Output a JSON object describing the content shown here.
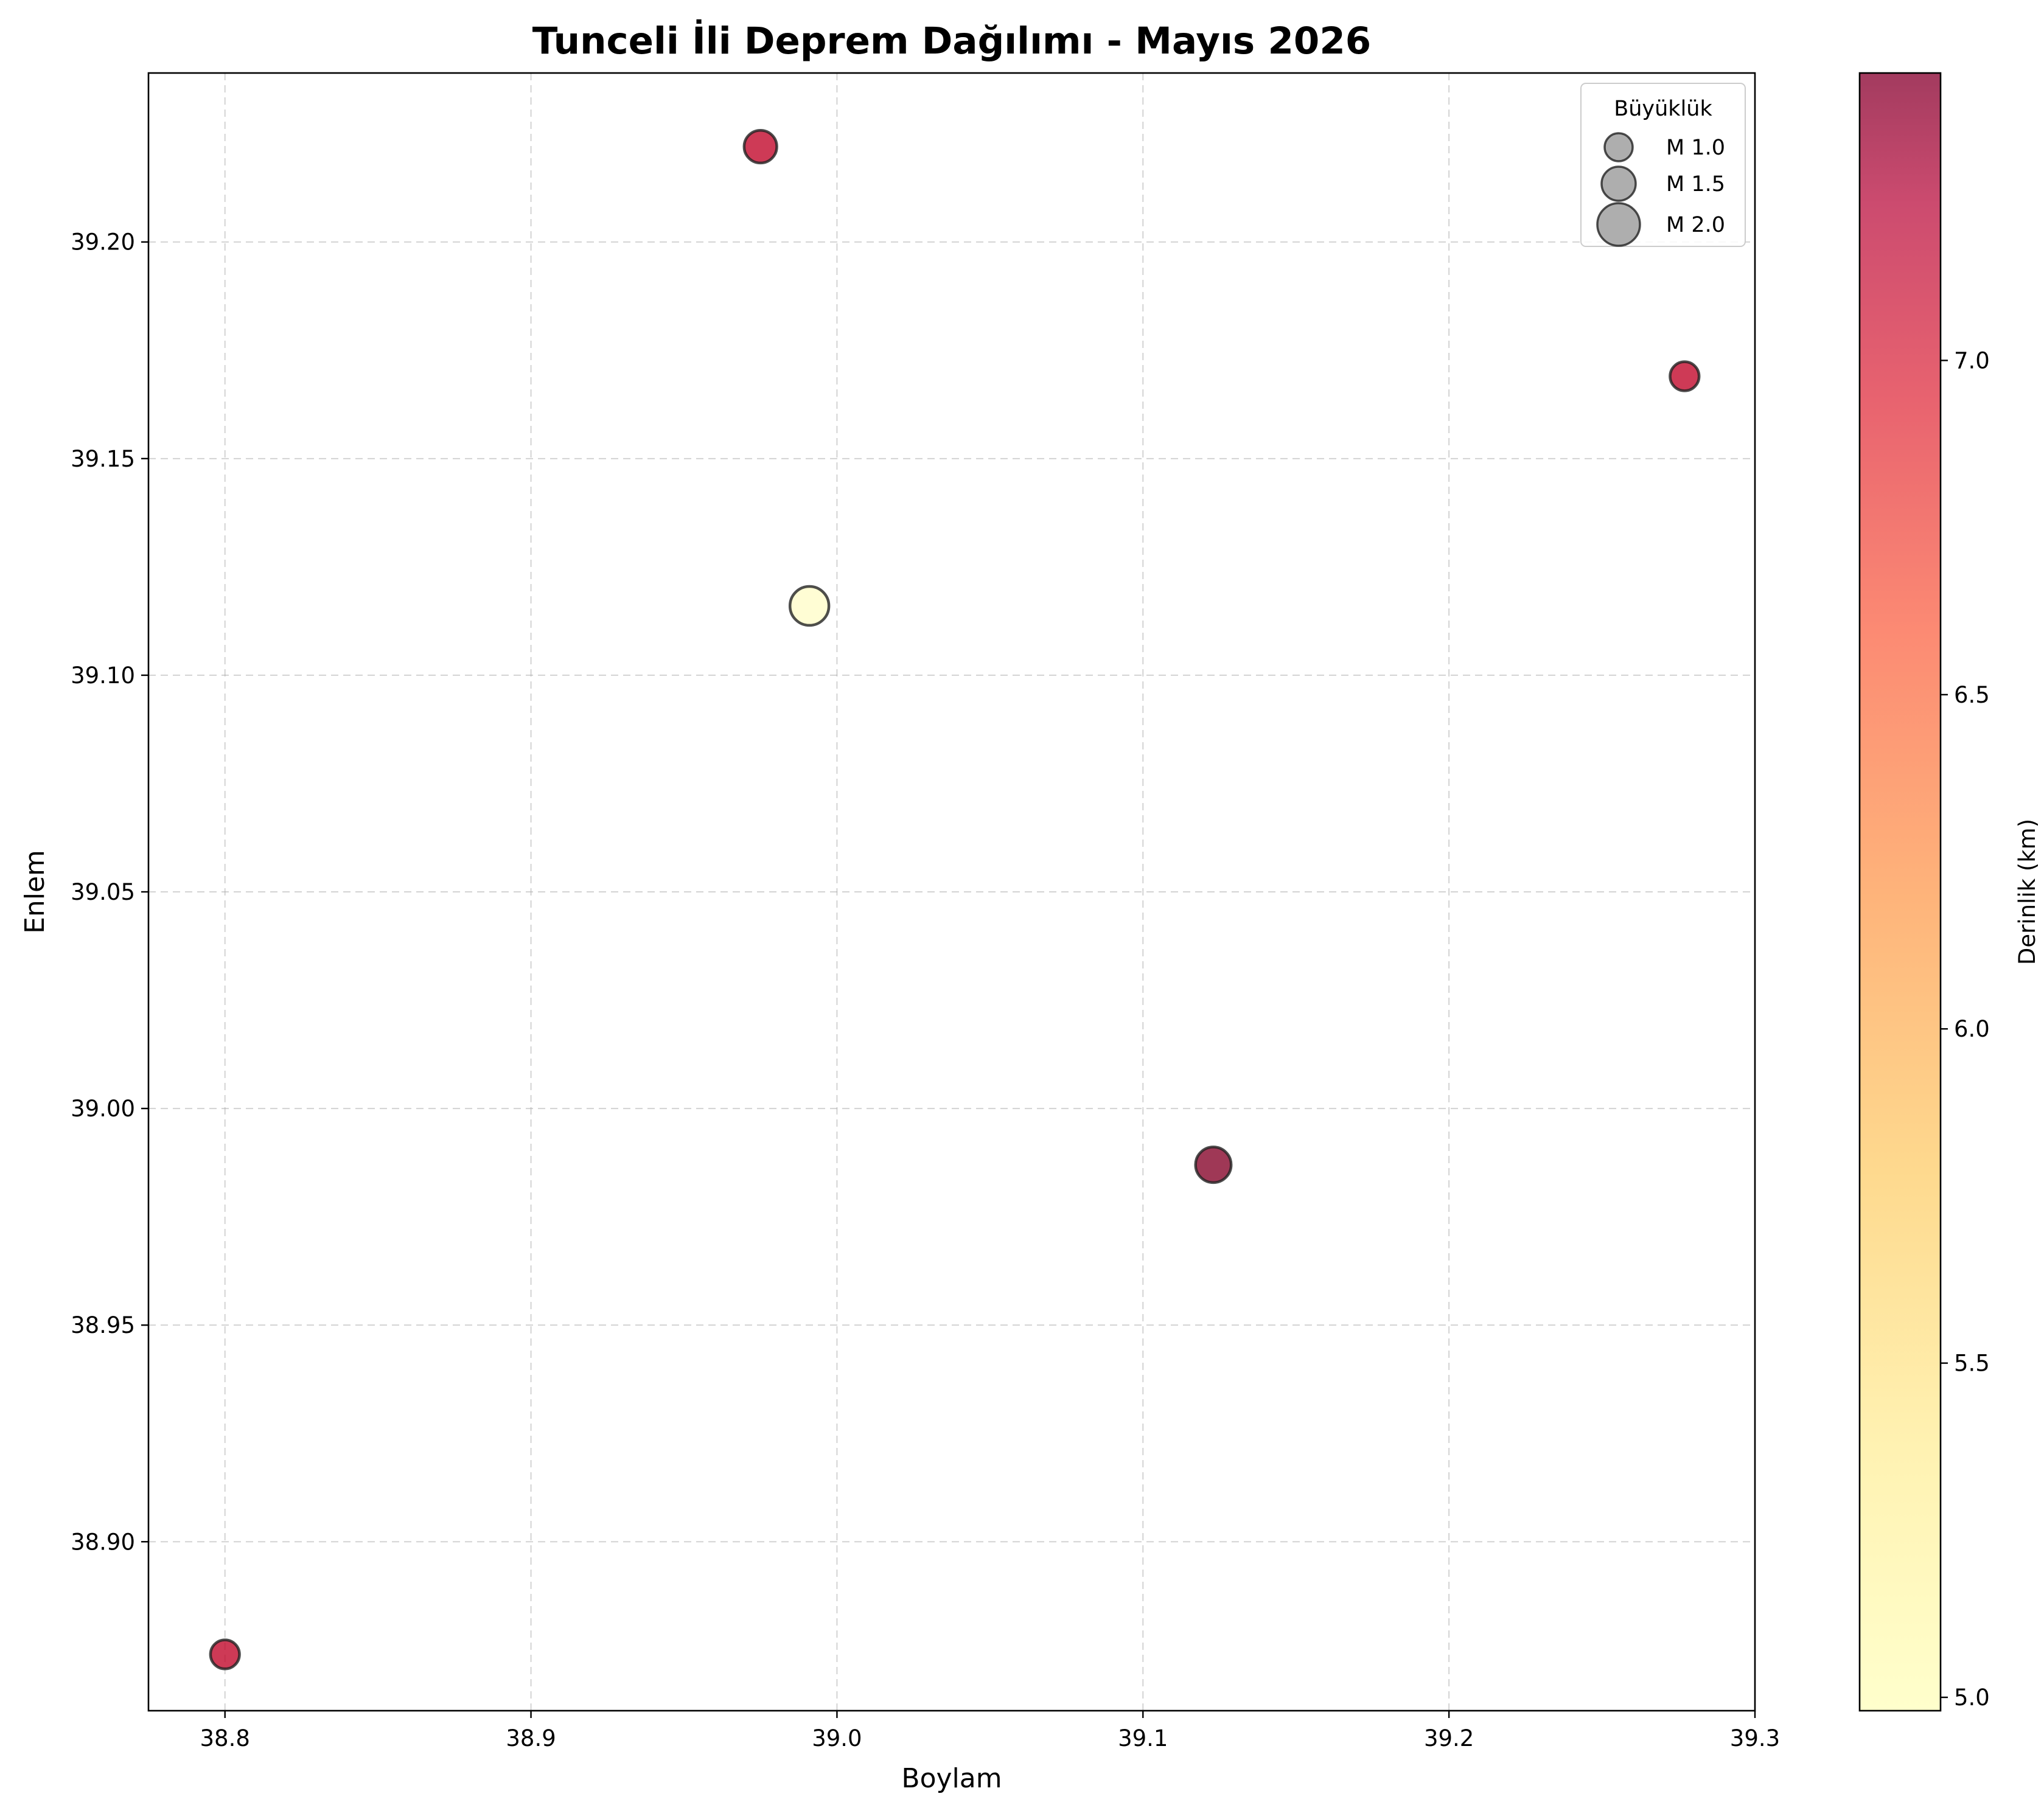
{
  "chart_data": {
    "type": "scatter",
    "title": "Tunceli İli Deprem Dağılımı - Mayıs 2026",
    "xlabel": "Boylam",
    "ylabel": "Enlem",
    "xlim": [
      38.775,
      39.3
    ],
    "ylim": [
      38.861,
      39.239
    ],
    "xticks": [
      38.8,
      38.9,
      39.0,
      39.1,
      39.2,
      39.3
    ],
    "xtick_labels": [
      "38.8",
      "38.9",
      "39.0",
      "39.1",
      "39.2",
      "39.3"
    ],
    "yticks": [
      38.9,
      38.95,
      39.0,
      39.05,
      39.1,
      39.15,
      39.2
    ],
    "ytick_labels": [
      "38.90",
      "38.95",
      "39.00",
      "39.05",
      "39.10",
      "39.15",
      "39.20"
    ],
    "grid": true,
    "points": [
      {
        "lon": 38.975,
        "lat": 39.222,
        "magnitude": 1.4,
        "depth": 7.0
      },
      {
        "lon": 38.991,
        "lat": 39.116,
        "magnitude": 1.8,
        "depth": 5.0
      },
      {
        "lon": 39.277,
        "lat": 39.169,
        "magnitude": 1.1,
        "depth": 7.0
      },
      {
        "lon": 39.123,
        "lat": 38.987,
        "magnitude": 1.6,
        "depth": 7.4
      },
      {
        "lon": 38.8,
        "lat": 38.874,
        "magnitude": 1.1,
        "depth": 7.0
      }
    ],
    "size_legend": {
      "title": "Büyüklük",
      "placement": "top-right",
      "entries": [
        {
          "label": "M 1.0",
          "magnitude": 1.0
        },
        {
          "label": "M 1.5",
          "magnitude": 1.5
        },
        {
          "label": "M 2.0",
          "magnitude": 2.0
        }
      ]
    },
    "colorbar": {
      "label": "Derinlik (km)",
      "range": [
        4.98,
        7.43
      ],
      "ticks": [
        5.0,
        5.5,
        6.0,
        6.5,
        7.0
      ],
      "tick_labels": [
        "5.0",
        "5.5",
        "6.0",
        "6.5",
        "7.0"
      ],
      "colormap": "YlOrRd",
      "colors": [
        "#ffffcc",
        "#fed976",
        "#feb24c",
        "#fd8d3c",
        "#f03b20",
        "#bd0026",
        "#800026"
      ]
    },
    "marker_edge_color": "#222222",
    "marker_alpha": 0.6
  }
}
